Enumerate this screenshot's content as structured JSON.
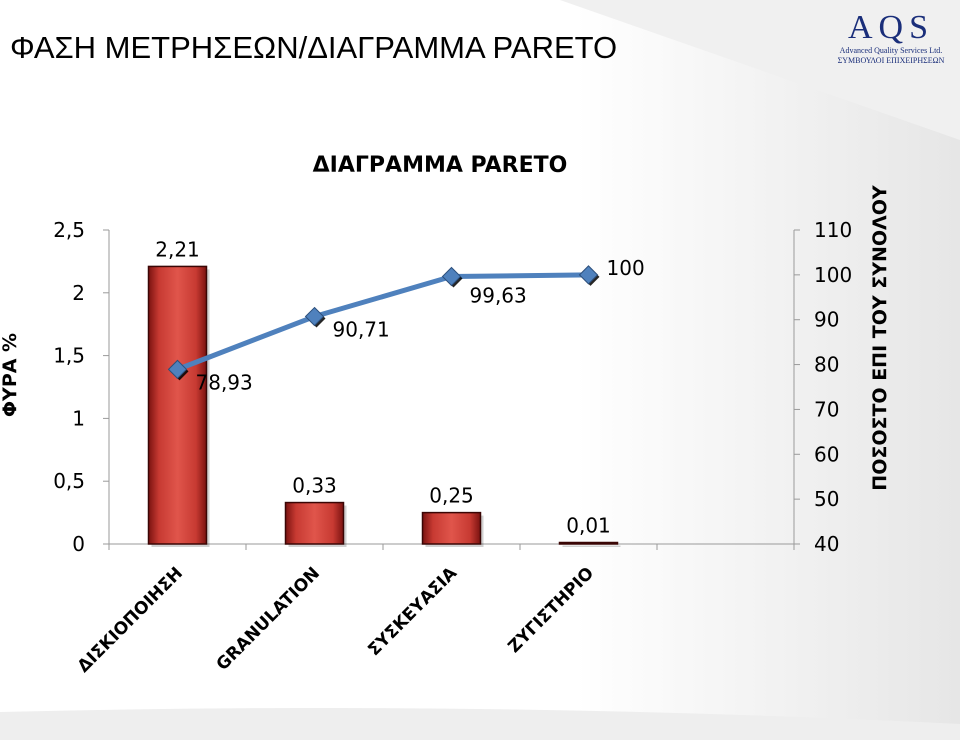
{
  "slide": {
    "title": "ΦΑΣΗ ΜΕΤΡΗΣΕΩΝ/ΔΙΑΓΡΑΜΜΑ PARETO"
  },
  "logo": {
    "mark": "AQS",
    "line1": "Advanced Quality Services Ltd.",
    "line2": "ΣΥΜΒΟΥΛΟΙ ΕΠΙΧΕΙΡΗΣΕΩΝ",
    "color": "#1a2e7a"
  },
  "chart_data": {
    "type": "bar",
    "title": "ΔΙΑΓΡΑΜΜΑ PARETO",
    "categories": [
      "ΔΙΣΚΙΟΠΟΙΗΣΗ",
      "GRANULATION",
      "ΣΥΣΚΕΥΑΣΙΑ",
      "ΖΥΓΙΣΤΗΡΙΟ"
    ],
    "series": [
      {
        "type": "bar",
        "axis": "left",
        "values": [
          2.21,
          0.33,
          0.25,
          0.01
        ],
        "labels": [
          "2,21",
          "0,33",
          "0,25",
          "0,01"
        ],
        "color": "#c0312b"
      },
      {
        "type": "line",
        "axis": "right",
        "values": [
          78.93,
          90.71,
          99.63,
          100
        ],
        "labels": [
          "78,93",
          "90,71",
          "99,63",
          "100"
        ],
        "color": "#4f81bd"
      }
    ],
    "ylabel": "ΦΥΡΑ %",
    "y2label": "ΠΟΣΟΣΤΟ ΕΠΙ ΤΟΥ ΣΥΝΟΛΟΥ",
    "ylim": [
      0,
      2.5
    ],
    "yticks": [
      "0",
      "0,5",
      "1",
      "1,5",
      "2",
      "2,5"
    ],
    "y2lim": [
      40,
      110
    ],
    "y2ticks": [
      "40",
      "50",
      "60",
      "70",
      "80",
      "90",
      "100",
      "110"
    ],
    "grid": false,
    "legend": "none"
  }
}
